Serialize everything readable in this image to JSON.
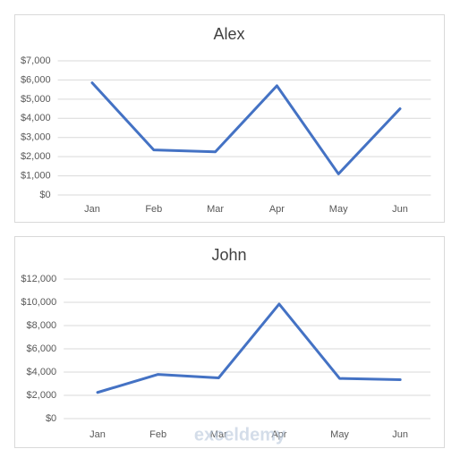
{
  "chart_data": [
    {
      "type": "line",
      "title": "Alex",
      "categories": [
        "Jan",
        "Feb",
        "Mar",
        "Apr",
        "May",
        "Jun"
      ],
      "series": [
        {
          "color": "#4472c4",
          "values": [
            5850,
            2350,
            2250,
            5700,
            1100,
            4500
          ]
        }
      ],
      "ylim": [
        0,
        7000
      ],
      "yticks": [
        {
          "value": 0,
          "label": "$0"
        },
        {
          "value": 1000,
          "label": "$1,000"
        },
        {
          "value": 2000,
          "label": "$2,000"
        },
        {
          "value": 3000,
          "label": "$3,000"
        },
        {
          "value": 4000,
          "label": "$4,000"
        },
        {
          "value": 5000,
          "label": "$5,000"
        },
        {
          "value": 6000,
          "label": "$6,000"
        },
        {
          "value": 7000,
          "label": "$7,000"
        }
      ],
      "grid": true
    },
    {
      "type": "line",
      "title": "John",
      "categories": [
        "Jan",
        "Feb",
        "Mar",
        "Apr",
        "May",
        "Jun"
      ],
      "series": [
        {
          "color": "#4472c4",
          "values": [
            2250,
            3800,
            3500,
            9850,
            3450,
            3350
          ]
        }
      ],
      "ylim": [
        0,
        12000
      ],
      "yticks": [
        {
          "value": 0,
          "label": "$0"
        },
        {
          "value": 2000,
          "label": "$2,000"
        },
        {
          "value": 4000,
          "label": "$4,000"
        },
        {
          "value": 6000,
          "label": "$6,000"
        },
        {
          "value": 8000,
          "label": "$8,000"
        },
        {
          "value": 10000,
          "label": "$10,000"
        },
        {
          "value": 12000,
          "label": "$12,000"
        }
      ],
      "grid": true
    }
  ],
  "watermark": "exceldemy"
}
